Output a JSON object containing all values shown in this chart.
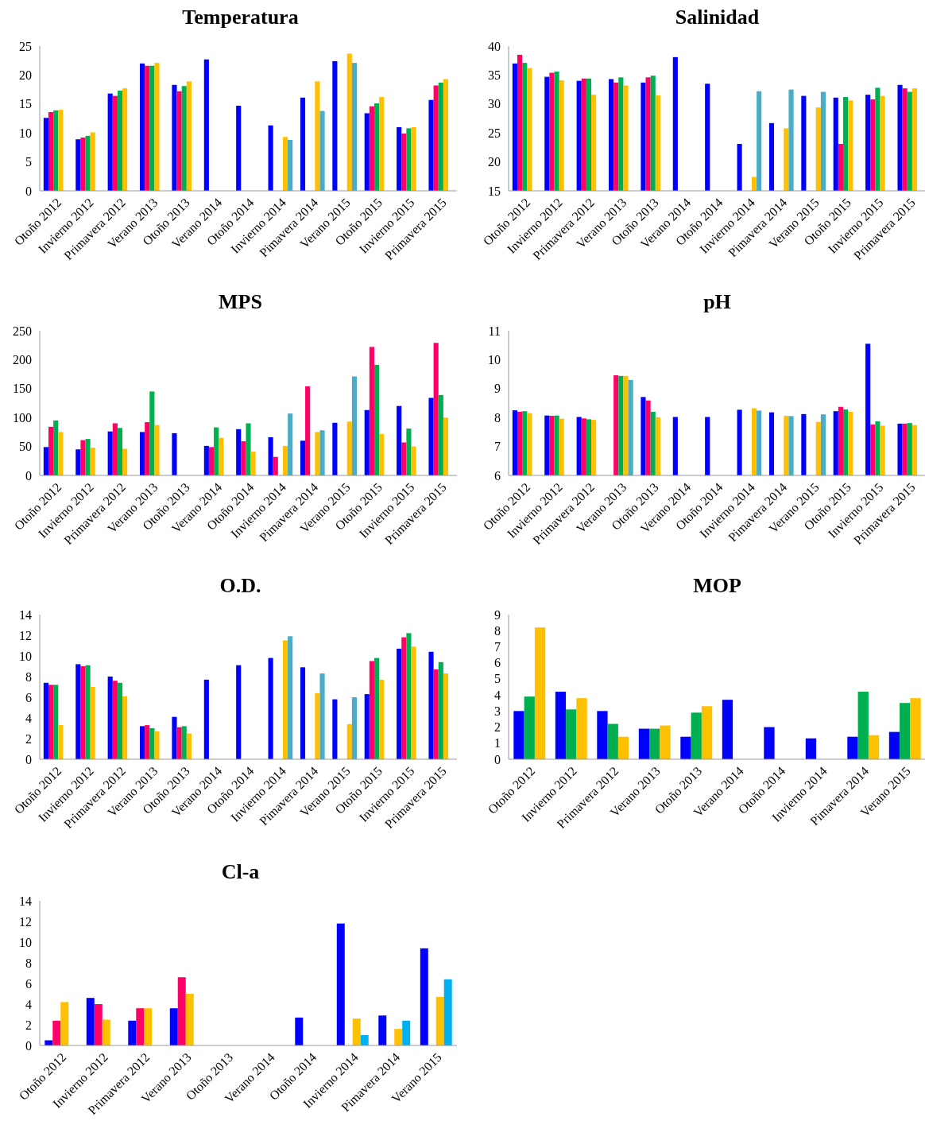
{
  "chart_data": [
    {
      "type": "bar",
      "title": "Temperatura",
      "categories": [
        "Otoño 2012",
        "Invierno 2012",
        "Primavera 2012",
        "Verano 2013",
        "Otoño 2013",
        "Verano 2014",
        "Otoño 2014",
        "Invierno 2014",
        "Pimavera 2014",
        "Verano 2015",
        "Otoño 2015",
        "Invierno 2015",
        "Primavera 2015"
      ],
      "ylim": [
        0,
        25
      ],
      "yticks": [
        0,
        5,
        10,
        15,
        20,
        25
      ],
      "series": [
        {
          "color": "#0000ff",
          "values": [
            12.6,
            8.9,
            16.8,
            22.0,
            18.3,
            22.7,
            14.7,
            11.3,
            16.1,
            22.4,
            13.4,
            11.0,
            15.7
          ]
        },
        {
          "color": "#ff0066",
          "values": [
            13.6,
            9.2,
            16.4,
            21.6,
            17.2,
            null,
            null,
            null,
            null,
            null,
            14.6,
            9.9,
            18.2
          ]
        },
        {
          "color": "#00b050",
          "values": [
            13.9,
            9.5,
            17.3,
            21.6,
            18.1,
            null,
            null,
            null,
            null,
            null,
            15.1,
            10.8,
            18.7
          ]
        },
        {
          "color": "#ffc000",
          "values": [
            14.0,
            10.1,
            17.7,
            22.1,
            18.9,
            null,
            null,
            9.3,
            18.9,
            23.7,
            16.2,
            11.0,
            19.3
          ]
        },
        {
          "color": "#4bacc6",
          "values": [
            null,
            null,
            null,
            null,
            null,
            null,
            null,
            8.8,
            13.8,
            22.1,
            null,
            null,
            null
          ]
        }
      ]
    },
    {
      "type": "bar",
      "title": "Salinidad",
      "categories": [
        "Otoño 2012",
        "Invierno 2012",
        "Primavera 2012",
        "Verano 2013",
        "Otoño 2013",
        "Verano 2014",
        "Otoño 2014",
        "Invierno 2014",
        "Pimavera 2014",
        "Verano 2015",
        "Otoño 2015",
        "Invierno 2015",
        "Primavera 2015"
      ],
      "ylim": [
        15,
        40
      ],
      "yticks": [
        15,
        20,
        25,
        30,
        35,
        40
      ],
      "series": [
        {
          "color": "#0000ff",
          "values": [
            37.0,
            34.7,
            34.0,
            34.3,
            33.7,
            38.1,
            33.5,
            23.1,
            26.7,
            31.4,
            31.1,
            31.6,
            33.3
          ]
        },
        {
          "color": "#ff0066",
          "values": [
            38.5,
            35.4,
            34.4,
            33.7,
            34.6,
            null,
            null,
            null,
            null,
            null,
            23.1,
            30.8,
            32.7
          ]
        },
        {
          "color": "#00b050",
          "values": [
            37.1,
            35.6,
            34.4,
            34.6,
            34.9,
            null,
            null,
            null,
            null,
            null,
            31.2,
            32.8,
            32.1
          ]
        },
        {
          "color": "#ffc000",
          "values": [
            36.2,
            34.1,
            31.6,
            33.2,
            31.5,
            null,
            null,
            17.4,
            25.8,
            29.4,
            30.6,
            31.4,
            32.7
          ]
        },
        {
          "color": "#4bacc6",
          "values": [
            null,
            null,
            null,
            null,
            null,
            null,
            null,
            32.2,
            32.5,
            32.1,
            null,
            null,
            null
          ]
        }
      ]
    },
    {
      "type": "bar",
      "title": "MPS",
      "categories": [
        "Otoño 2012",
        "Invierno 2012",
        "Primavera 2012",
        "Verano 2013",
        "Otoño 2013",
        "Verano 2014",
        "Otoño 2014",
        "Invierno 2014",
        "Pimavera 2014",
        "Verano 2015",
        "Otoño 2015",
        "Invierno 2015",
        "Primavera 2015"
      ],
      "ylim": [
        0,
        250
      ],
      "yticks": [
        0,
        50,
        100,
        150,
        200,
        250
      ],
      "series": [
        {
          "color": "#0000ff",
          "values": [
            49,
            45,
            76,
            75,
            73,
            51,
            80,
            66,
            60,
            91,
            113,
            120,
            134
          ]
        },
        {
          "color": "#ff0066",
          "values": [
            84,
            61,
            90,
            92,
            null,
            49,
            59,
            32,
            154,
            null,
            222,
            57,
            229
          ]
        },
        {
          "color": "#00b050",
          "values": [
            95,
            63,
            82,
            145,
            null,
            83,
            90,
            null,
            null,
            null,
            191,
            81,
            139
          ]
        },
        {
          "color": "#ffc000",
          "values": [
            75,
            48,
            46,
            87,
            null,
            65,
            41,
            51,
            75,
            93,
            72,
            50,
            100
          ]
        },
        {
          "color": "#4bacc6",
          "values": [
            null,
            null,
            null,
            null,
            null,
            null,
            null,
            107,
            78,
            171,
            null,
            null,
            null
          ]
        }
      ]
    },
    {
      "type": "bar",
      "title": "pH",
      "categories": [
        "Otoño 2012",
        "Invierno 2012",
        "Primavera 2012",
        "Verano 2013",
        "Otoño 2013",
        "Verano 2014",
        "Otoño 2014",
        "Invierno 2014",
        "Pimavera 2014",
        "Verano 2015",
        "Otoño 2015",
        "Invierno 2015",
        "Primavera 2015"
      ],
      "ylim": [
        6,
        11
      ],
      "yticks": [
        6,
        7,
        8,
        9,
        10,
        11
      ],
      "series": [
        {
          "color": "#0000ff",
          "values": [
            8.25,
            8.07,
            8.02,
            null,
            8.71,
            8.02,
            8.02,
            8.27,
            8.18,
            8.12,
            8.22,
            10.55,
            7.79
          ]
        },
        {
          "color": "#ff0066",
          "values": [
            8.2,
            8.06,
            7.97,
            9.46,
            8.59,
            null,
            null,
            null,
            null,
            null,
            8.37,
            7.76,
            7.79
          ]
        },
        {
          "color": "#00b050",
          "values": [
            8.22,
            8.07,
            7.94,
            9.44,
            8.2,
            null,
            null,
            null,
            null,
            null,
            8.28,
            7.87,
            7.81
          ]
        },
        {
          "color": "#ffc000",
          "values": [
            8.15,
            7.96,
            7.92,
            9.44,
            8.01,
            null,
            null,
            8.32,
            8.06,
            7.85,
            8.2,
            7.72,
            7.74
          ]
        },
        {
          "color": "#4bacc6",
          "values": [
            null,
            null,
            null,
            9.3,
            null,
            null,
            null,
            8.24,
            8.05,
            8.11,
            null,
            null,
            null
          ]
        }
      ]
    },
    {
      "type": "bar",
      "title": "O.D.",
      "categories": [
        "Otoño 2012",
        "Invierno 2012",
        "Primavera 2012",
        "Verano 2013",
        "Otoño 2013",
        "Verano 2014",
        "Otoño 2014",
        "Invierno 2014",
        "Pimavera 2014",
        "Verano 2015",
        "Otoño 2015",
        "Invierno 2015",
        "Primavera 2015"
      ],
      "ylim": [
        0,
        14
      ],
      "yticks": [
        0,
        2,
        4,
        6,
        8,
        10,
        12,
        14
      ],
      "series": [
        {
          "color": "#0000ff",
          "values": [
            7.4,
            9.2,
            8.0,
            3.2,
            4.1,
            7.7,
            9.1,
            9.8,
            8.9,
            5.8,
            6.3,
            10.7,
            10.4
          ]
        },
        {
          "color": "#ff0066",
          "values": [
            7.2,
            9.0,
            7.6,
            3.3,
            3.1,
            null,
            null,
            null,
            null,
            null,
            9.5,
            11.8,
            8.7
          ]
        },
        {
          "color": "#00b050",
          "values": [
            7.2,
            9.1,
            7.4,
            3.0,
            3.2,
            null,
            null,
            null,
            null,
            null,
            9.8,
            12.2,
            9.4
          ]
        },
        {
          "color": "#ffc000",
          "values": [
            3.3,
            7.0,
            6.1,
            2.7,
            2.5,
            null,
            null,
            11.5,
            6.4,
            3.4,
            7.7,
            10.9,
            8.3
          ]
        },
        {
          "color": "#4bacc6",
          "values": [
            null,
            null,
            null,
            null,
            null,
            null,
            null,
            11.9,
            8.3,
            6.0,
            null,
            null,
            null
          ]
        }
      ]
    },
    {
      "type": "bar",
      "title": "MOP",
      "categories": [
        "Otoño 2012",
        "Invierno 2012",
        "Primavera 2012",
        "Verano 2013",
        "Otoño 2013",
        "Verano 2014",
        "Otoño 2014",
        "Invierno 2014",
        "Pimavera 2014",
        "Verano 2015"
      ],
      "ylim": [
        0,
        9
      ],
      "yticks": [
        0,
        1,
        2,
        3,
        4,
        5,
        6,
        7,
        8,
        9
      ],
      "series": [
        {
          "color": "#0000ff",
          "values": [
            3.0,
            4.2,
            3.0,
            1.9,
            1.4,
            3.7,
            2.0,
            1.3,
            1.4,
            1.7
          ]
        },
        {
          "color": "#00b050",
          "values": [
            3.9,
            3.1,
            2.2,
            1.9,
            2.9,
            null,
            null,
            null,
            4.2,
            3.5
          ]
        },
        {
          "color": "#ffc000",
          "values": [
            8.2,
            3.8,
            1.4,
            2.1,
            3.3,
            null,
            null,
            null,
            1.5,
            3.8
          ]
        }
      ]
    },
    {
      "type": "bar",
      "title": "Cl-a",
      "categories": [
        "Otoño 2012",
        "Invierno 2012",
        "Primavera 2012",
        "Verano 2013",
        "Otoño 2013",
        "Verano 2014",
        "Otoño 2014",
        "Invierno 2014",
        "Pimavera 2014",
        "Verano 2015"
      ],
      "ylim": [
        0,
        14
      ],
      "yticks": [
        0,
        2,
        4,
        6,
        8,
        10,
        12,
        14
      ],
      "series": [
        {
          "color": "#0000ff",
          "values": [
            0.5,
            4.6,
            2.4,
            3.6,
            null,
            null,
            2.7,
            11.8,
            2.9,
            9.4
          ]
        },
        {
          "color": "#ff0066",
          "values": [
            2.4,
            4.0,
            3.6,
            6.6,
            null,
            null,
            null,
            null,
            null,
            null
          ]
        },
        {
          "color": "#ffc000",
          "values": [
            4.2,
            2.5,
            3.6,
            5.0,
            null,
            null,
            null,
            2.6,
            1.6,
            4.7
          ]
        },
        {
          "color": "#00b0f0",
          "values": [
            null,
            null,
            null,
            null,
            null,
            null,
            null,
            1.0,
            2.4,
            6.4
          ]
        }
      ]
    }
  ]
}
